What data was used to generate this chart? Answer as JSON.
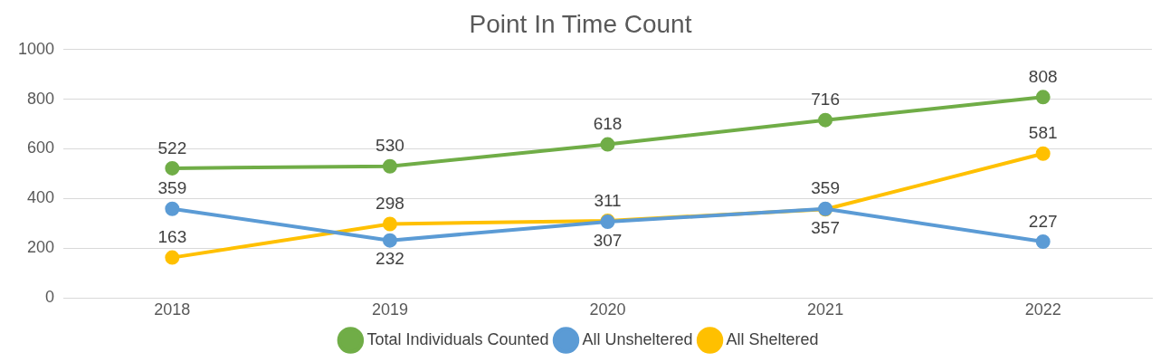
{
  "chart_data": {
    "type": "line",
    "title": "Point In Time Count",
    "categories": [
      "2018",
      "2019",
      "2020",
      "2021",
      "2022"
    ],
    "series": [
      {
        "name": "Total Individuals Counted",
        "color": "#70ad47",
        "values": [
          522,
          530,
          618,
          716,
          808
        ]
      },
      {
        "name": "All Unsheltered",
        "color": "#5b9bd5",
        "values": [
          359,
          232,
          307,
          359,
          227
        ]
      },
      {
        "name": "All Sheltered",
        "color": "#ffc000",
        "values": [
          163,
          298,
          311,
          357,
          581
        ]
      }
    ],
    "ylim": [
      0,
      1000
    ],
    "yticks": [
      0,
      200,
      400,
      600,
      800,
      1000
    ],
    "grid": "y",
    "legend": "bottom",
    "marker": "circle",
    "data_labels": true
  }
}
